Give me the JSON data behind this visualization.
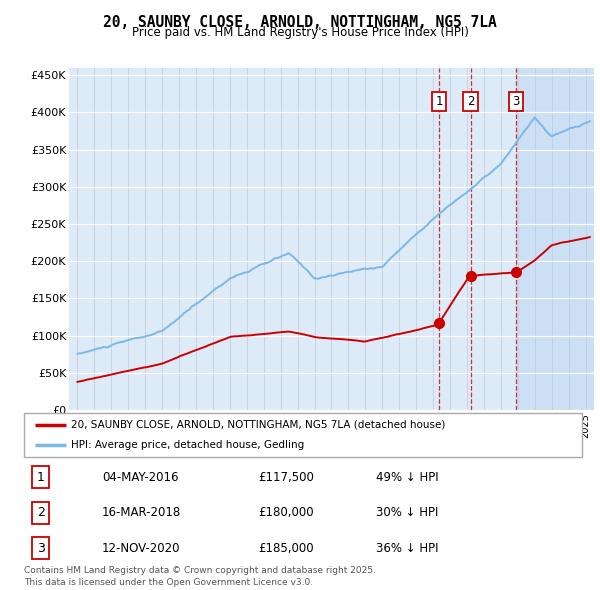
{
  "title": "20, SAUNBY CLOSE, ARNOLD, NOTTINGHAM, NG5 7LA",
  "subtitle": "Price paid vs. HM Land Registry's House Price Index (HPI)",
  "ylim": [
    0,
    460000
  ],
  "yticks": [
    0,
    50000,
    100000,
    150000,
    200000,
    250000,
    300000,
    350000,
    400000,
    450000
  ],
  "ytick_labels": [
    "£0",
    "£50K",
    "£100K",
    "£150K",
    "£200K",
    "£250K",
    "£300K",
    "£350K",
    "£400K",
    "£450K"
  ],
  "hpi_color": "#7ab8e8",
  "price_color": "#cc0000",
  "bg_color": "#ddeaf7",
  "shade_color": "#cce0f5",
  "transactions": [
    {
      "label": "1",
      "date_num": 2016.35,
      "price": 117500
    },
    {
      "label": "2",
      "date_num": 2018.21,
      "price": 180000
    },
    {
      "label": "3",
      "date_num": 2020.87,
      "price": 185000
    }
  ],
  "legend_red": "20, SAUNBY CLOSE, ARNOLD, NOTTINGHAM, NG5 7LA (detached house)",
  "legend_blue": "HPI: Average price, detached house, Gedling",
  "footer": "Contains HM Land Registry data © Crown copyright and database right 2025.\nThis data is licensed under the Open Government Licence v3.0.",
  "table_rows": [
    [
      "1",
      "04-MAY-2016",
      "£117,500",
      "49% ↓ HPI"
    ],
    [
      "2",
      "16-MAR-2018",
      "£180,000",
      "30% ↓ HPI"
    ],
    [
      "3",
      "12-NOV-2020",
      "£185,000",
      "36% ↓ HPI"
    ]
  ]
}
